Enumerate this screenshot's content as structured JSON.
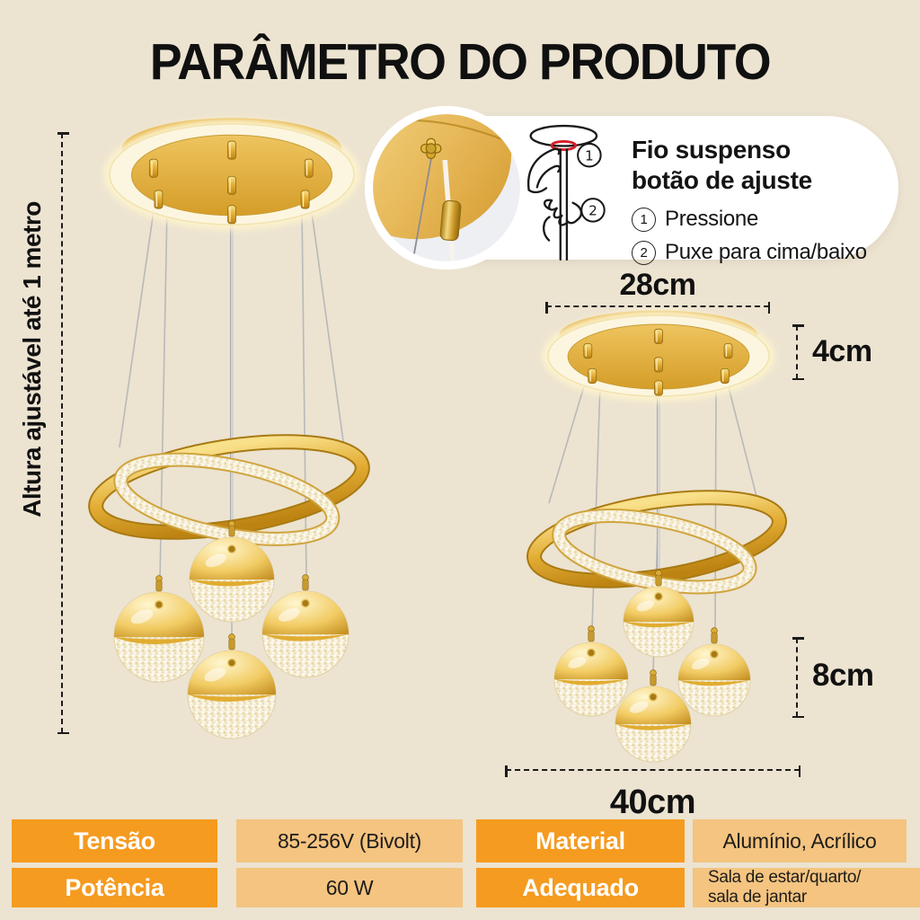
{
  "title": "PARÂMETRO DO PRODUTO",
  "callout": {
    "heading_line1": "Fio suspenso",
    "heading_line2": "botão de ajuste",
    "steps": [
      {
        "num": "1",
        "text": "Pressione"
      },
      {
        "num": "2",
        "text": "Puxe para cima/baixo"
      }
    ]
  },
  "left_figure": {
    "height_note": "Altura ajustável até 1 metro"
  },
  "right_figure": {
    "top_width": "28cm",
    "canopy_height": "4cm",
    "ball_height": "8cm",
    "bottom_width": "40cm"
  },
  "spec_table": {
    "rows": [
      [
        {
          "text": "Tensão"
        },
        {
          "text": "85-256V (Bivolt)"
        },
        {
          "text": "Material"
        },
        {
          "text": "Alumínio, Acrílico"
        }
      ],
      [
        {
          "text": "Potência"
        },
        {
          "text": "60 W"
        },
        {
          "text": "Adequado"
        },
        {
          "text": "Sala de estar/quarto/\nsala de jantar"
        }
      ]
    ]
  },
  "colors": {
    "background": "#ece3d1",
    "table_label_bg": "#f59b20",
    "table_value_bg": "#f4c480",
    "gold": "#d9a53a",
    "accent_red": "#d42028",
    "text": "#141414"
  }
}
